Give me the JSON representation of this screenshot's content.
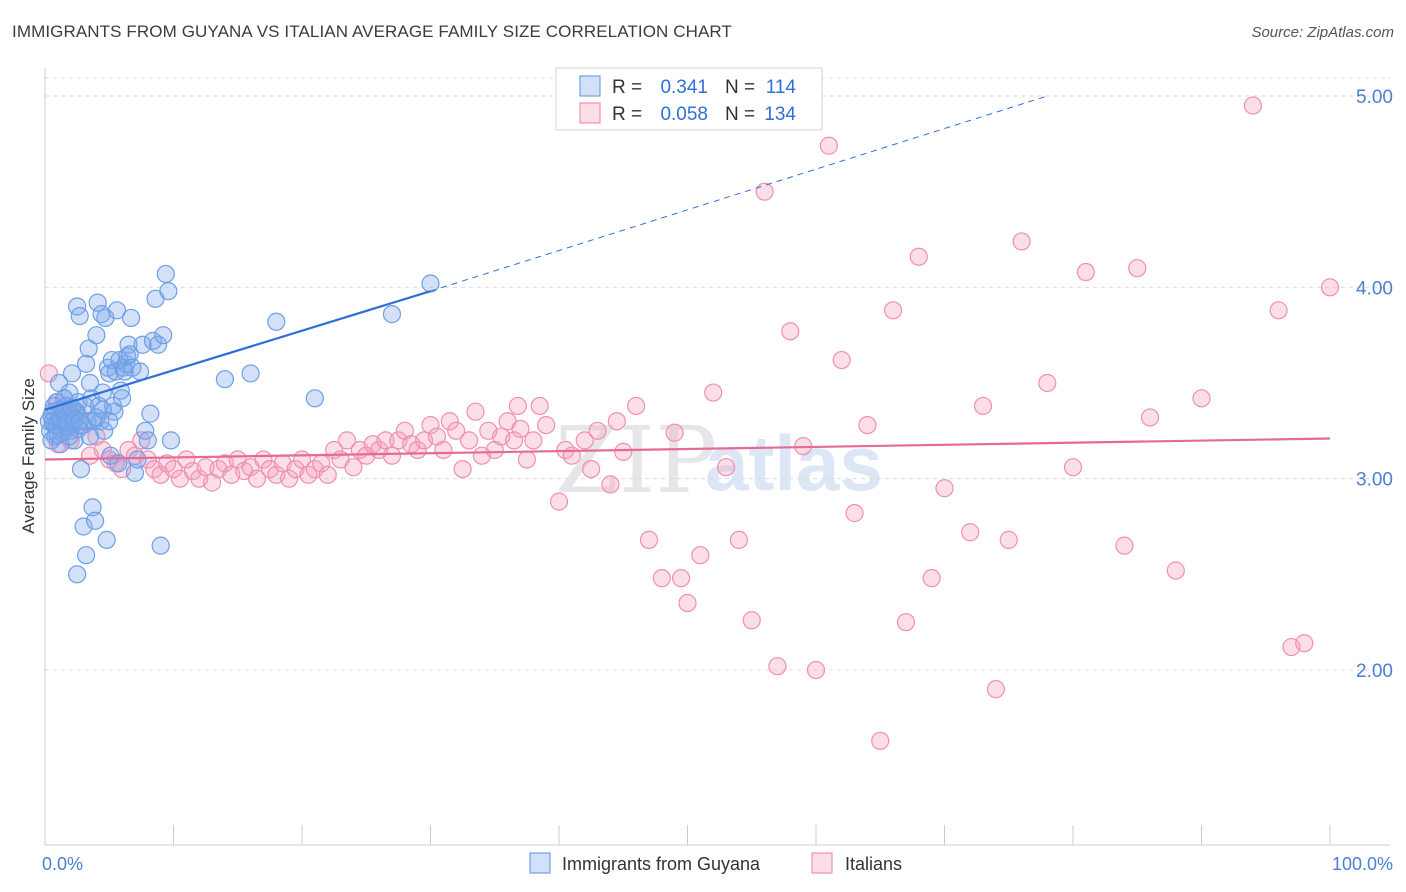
{
  "title": "IMMIGRANTS FROM GUYANA VS ITALIAN AVERAGE FAMILY SIZE CORRELATION CHART",
  "source": "Source: ZipAtlas.com",
  "watermark": {
    "part1": "ZIP",
    "part2": "atlas"
  },
  "colors": {
    "blue": "#6d9fe6",
    "blue_fill": "rgba(125,170,235,0.35)",
    "blue_line": "#2f6fd6",
    "pink": "#f08fb0",
    "pink_fill": "rgba(245,160,190,0.35)",
    "pink_line": "#e56b95",
    "grid": "#d8dbe3"
  },
  "legend": {
    "rows": [
      {
        "r_label": "R =",
        "r_value": "0.341",
        "n_label": "N =",
        "n_value": "114",
        "series": "blue"
      },
      {
        "r_label": "R =",
        "r_value": "0.058",
        "n_label": "N =",
        "n_value": "134",
        "series": "pink"
      }
    ]
  },
  "chart_data": {
    "type": "scatter",
    "ylabel": "Average Family Size",
    "xlim": [
      0,
      100
    ],
    "ylim": [
      1.15,
      5.25
    ],
    "y_ticks": [
      2.0,
      3.0,
      4.0,
      5.0
    ],
    "y_tick_labels": [
      "2.00",
      "3.00",
      "4.00",
      "5.00"
    ],
    "x_tick_labels": [
      "0.0%",
      "100.0%"
    ],
    "grid": "dashed horizontal",
    "legend_position": "top-center and bottom",
    "series": [
      {
        "name": "Immigrants from Guyana",
        "color": "blue",
        "trend": {
          "x0": 0,
          "y0": 3.36,
          "x1": 30,
          "y1": 3.98,
          "dash_to_x": 78,
          "dash_to_y": 5.0
        },
        "points": [
          [
            0.3,
            3.3
          ],
          [
            0.4,
            3.25
          ],
          [
            0.5,
            3.2
          ],
          [
            0.6,
            3.35
          ],
          [
            0.7,
            3.28
          ],
          [
            0.8,
            3.22
          ],
          [
            0.9,
            3.4
          ],
          [
            1.0,
            3.3
          ],
          [
            1.1,
            3.5
          ],
          [
            1.2,
            3.18
          ],
          [
            1.3,
            3.35
          ],
          [
            1.4,
            3.3
          ],
          [
            1.5,
            3.42
          ],
          [
            1.6,
            3.27
          ],
          [
            1.7,
            3.38
          ],
          [
            1.8,
            3.32
          ],
          [
            1.9,
            3.45
          ],
          [
            2.0,
            3.25
          ],
          [
            2.1,
            3.55
          ],
          [
            2.2,
            3.3
          ],
          [
            2.3,
            3.2
          ],
          [
            2.4,
            3.35
          ],
          [
            2.5,
            3.9
          ],
          [
            2.6,
            3.4
          ],
          [
            2.7,
            3.85
          ],
          [
            2.8,
            3.05
          ],
          [
            2.9,
            3.28
          ],
          [
            3.0,
            2.75
          ],
          [
            3.1,
            3.38
          ],
          [
            3.2,
            3.6
          ],
          [
            3.3,
            3.3
          ],
          [
            3.4,
            3.68
          ],
          [
            3.5,
            3.5
          ],
          [
            3.6,
            3.42
          ],
          [
            3.7,
            2.85
          ],
          [
            3.8,
            3.3
          ],
          [
            3.9,
            2.78
          ],
          [
            4.0,
            3.75
          ],
          [
            4.1,
            3.92
          ],
          [
            4.2,
            3.38
          ],
          [
            4.3,
            3.3
          ],
          [
            4.4,
            3.86
          ],
          [
            4.5,
            3.45
          ],
          [
            4.6,
            3.25
          ],
          [
            4.7,
            3.84
          ],
          [
            4.8,
            2.68
          ],
          [
            4.9,
            3.58
          ],
          [
            5.0,
            3.55
          ],
          [
            5.1,
            3.12
          ],
          [
            5.2,
            3.62
          ],
          [
            5.3,
            3.38
          ],
          [
            5.4,
            3.35
          ],
          [
            5.5,
            3.56
          ],
          [
            5.6,
            3.88
          ],
          [
            5.7,
            3.08
          ],
          [
            5.8,
            3.62
          ],
          [
            5.9,
            3.46
          ],
          [
            6.0,
            3.42
          ],
          [
            6.1,
            3.58
          ],
          [
            6.2,
            3.56
          ],
          [
            6.3,
            3.6
          ],
          [
            6.4,
            3.64
          ],
          [
            6.5,
            3.7
          ],
          [
            6.6,
            3.65
          ],
          [
            6.7,
            3.84
          ],
          [
            6.8,
            3.58
          ],
          [
            7.0,
            3.03
          ],
          [
            7.2,
            3.1
          ],
          [
            7.4,
            3.56
          ],
          [
            7.6,
            3.7
          ],
          [
            7.8,
            3.25
          ],
          [
            8.0,
            3.2
          ],
          [
            8.2,
            3.34
          ],
          [
            8.4,
            3.72
          ],
          [
            8.6,
            3.94
          ],
          [
            8.8,
            3.7
          ],
          [
            9.0,
            2.65
          ],
          [
            9.2,
            3.75
          ],
          [
            9.4,
            4.07
          ],
          [
            9.6,
            3.98
          ],
          [
            9.8,
            3.2
          ],
          [
            14.0,
            3.52
          ],
          [
            16.0,
            3.55
          ],
          [
            18.0,
            3.82
          ],
          [
            21.0,
            3.42
          ],
          [
            27.0,
            3.86
          ],
          [
            30.0,
            4.02
          ],
          [
            2.5,
            2.5
          ],
          [
            3.2,
            2.6
          ],
          [
            1.5,
            3.42
          ],
          [
            0.6,
            3.3
          ],
          [
            0.9,
            3.28
          ],
          [
            1.1,
            3.36
          ],
          [
            1.3,
            3.24
          ],
          [
            1.6,
            3.31
          ],
          [
            1.8,
            3.27
          ],
          [
            2.0,
            3.33
          ],
          [
            2.2,
            3.29
          ],
          [
            2.4,
            3.34
          ],
          [
            2.6,
            3.26
          ],
          [
            0.5,
            3.33
          ],
          [
            0.7,
            3.38
          ],
          [
            1.0,
            3.23
          ],
          [
            1.2,
            3.31
          ],
          [
            1.4,
            3.36
          ],
          [
            1.7,
            3.29
          ],
          [
            1.9,
            3.22
          ],
          [
            2.1,
            3.37
          ],
          [
            2.3,
            3.31
          ],
          [
            2.7,
            3.3
          ],
          [
            3.5,
            3.22
          ],
          [
            4.0,
            3.32
          ],
          [
            4.5,
            3.36
          ],
          [
            5.0,
            3.3
          ]
        ]
      },
      {
        "name": "Italians",
        "color": "pink",
        "trend": {
          "x0": 0,
          "y0": 3.1,
          "x1": 100,
          "y1": 3.21
        },
        "points": [
          [
            0.3,
            3.55
          ],
          [
            0.6,
            3.3
          ],
          [
            1.0,
            3.4
          ],
          [
            1.5,
            3.25
          ],
          [
            2.0,
            3.2
          ],
          [
            2.5,
            3.35
          ],
          [
            3.0,
            3.28
          ],
          [
            3.5,
            3.12
          ],
          [
            4.0,
            3.22
          ],
          [
            4.5,
            3.15
          ],
          [
            5.0,
            3.1
          ],
          [
            5.5,
            3.08
          ],
          [
            6.0,
            3.05
          ],
          [
            6.5,
            3.15
          ],
          [
            7.0,
            3.12
          ],
          [
            7.5,
            3.2
          ],
          [
            8.0,
            3.1
          ],
          [
            8.5,
            3.05
          ],
          [
            9.0,
            3.02
          ],
          [
            9.5,
            3.08
          ],
          [
            10.0,
            3.05
          ],
          [
            10.5,
            3.0
          ],
          [
            11.0,
            3.1
          ],
          [
            11.5,
            3.04
          ],
          [
            12.0,
            3.0
          ],
          [
            12.5,
            3.06
          ],
          [
            13.0,
            2.98
          ],
          [
            13.5,
            3.05
          ],
          [
            14.0,
            3.08
          ],
          [
            14.5,
            3.02
          ],
          [
            15.0,
            3.1
          ],
          [
            15.5,
            3.04
          ],
          [
            16.0,
            3.06
          ],
          [
            16.5,
            3.0
          ],
          [
            17.0,
            3.1
          ],
          [
            17.5,
            3.05
          ],
          [
            18.0,
            3.02
          ],
          [
            18.5,
            3.08
          ],
          [
            19.0,
            3.0
          ],
          [
            19.5,
            3.05
          ],
          [
            20.0,
            3.1
          ],
          [
            20.5,
            3.02
          ],
          [
            21.0,
            3.05
          ],
          [
            21.5,
            3.08
          ],
          [
            22.0,
            3.02
          ],
          [
            22.5,
            3.15
          ],
          [
            23.0,
            3.1
          ],
          [
            23.5,
            3.2
          ],
          [
            24.0,
            3.06
          ],
          [
            24.5,
            3.15
          ],
          [
            25.0,
            3.12
          ],
          [
            25.5,
            3.18
          ],
          [
            26.0,
            3.15
          ],
          [
            26.5,
            3.2
          ],
          [
            27.0,
            3.12
          ],
          [
            27.5,
            3.2
          ],
          [
            28.0,
            3.25
          ],
          [
            28.5,
            3.18
          ],
          [
            29.0,
            3.15
          ],
          [
            29.5,
            3.2
          ],
          [
            30.0,
            3.28
          ],
          [
            30.5,
            3.22
          ],
          [
            31.0,
            3.15
          ],
          [
            31.5,
            3.3
          ],
          [
            32.0,
            3.25
          ],
          [
            32.5,
            3.05
          ],
          [
            33.0,
            3.2
          ],
          [
            33.5,
            3.35
          ],
          [
            34.0,
            3.12
          ],
          [
            34.5,
            3.25
          ],
          [
            35.0,
            3.15
          ],
          [
            35.5,
            3.22
          ],
          [
            36.0,
            3.3
          ],
          [
            36.5,
            3.2
          ],
          [
            37.0,
            3.26
          ],
          [
            37.5,
            3.1
          ],
          [
            38.0,
            3.2
          ],
          [
            38.5,
            3.38
          ],
          [
            39.0,
            3.28
          ],
          [
            40.0,
            2.88
          ],
          [
            40.5,
            3.15
          ],
          [
            41.0,
            3.12
          ],
          [
            42.0,
            3.2
          ],
          [
            42.5,
            3.05
          ],
          [
            43.0,
            3.25
          ],
          [
            44.0,
            2.97
          ],
          [
            44.5,
            3.3
          ],
          [
            45.0,
            3.14
          ],
          [
            46.0,
            3.38
          ],
          [
            47.0,
            2.68
          ],
          [
            48.0,
            2.48
          ],
          [
            49.0,
            3.24
          ],
          [
            49.5,
            2.48
          ],
          [
            50.0,
            2.35
          ],
          [
            51.0,
            2.6
          ],
          [
            52.0,
            3.45
          ],
          [
            53.0,
            3.06
          ],
          [
            54.0,
            2.68
          ],
          [
            55.0,
            2.26
          ],
          [
            56.0,
            4.5
          ],
          [
            57.0,
            2.02
          ],
          [
            58.0,
            3.77
          ],
          [
            59.0,
            3.17
          ],
          [
            60.0,
            2.0
          ],
          [
            61.0,
            4.74
          ],
          [
            62.0,
            3.62
          ],
          [
            63.0,
            2.82
          ],
          [
            64.0,
            3.28
          ],
          [
            65.0,
            1.63
          ],
          [
            66.0,
            3.88
          ],
          [
            67.0,
            2.25
          ],
          [
            68.0,
            4.16
          ],
          [
            69.0,
            2.48
          ],
          [
            70.0,
            2.95
          ],
          [
            72.0,
            2.72
          ],
          [
            73.0,
            3.38
          ],
          [
            74.0,
            1.9
          ],
          [
            75.0,
            2.68
          ],
          [
            76.0,
            4.24
          ],
          [
            78.0,
            3.5
          ],
          [
            80.0,
            3.06
          ],
          [
            81.0,
            4.08
          ],
          [
            84.0,
            2.65
          ],
          [
            85.0,
            4.1
          ],
          [
            86.0,
            3.32
          ],
          [
            88.0,
            2.52
          ],
          [
            90.0,
            3.42
          ],
          [
            94.0,
            4.95
          ],
          [
            96.0,
            3.88
          ],
          [
            97.0,
            2.12
          ],
          [
            98.0,
            2.14
          ],
          [
            100.0,
            4.0
          ],
          [
            1.0,
            3.18
          ],
          [
            36.8,
            3.38
          ]
        ]
      }
    ]
  }
}
